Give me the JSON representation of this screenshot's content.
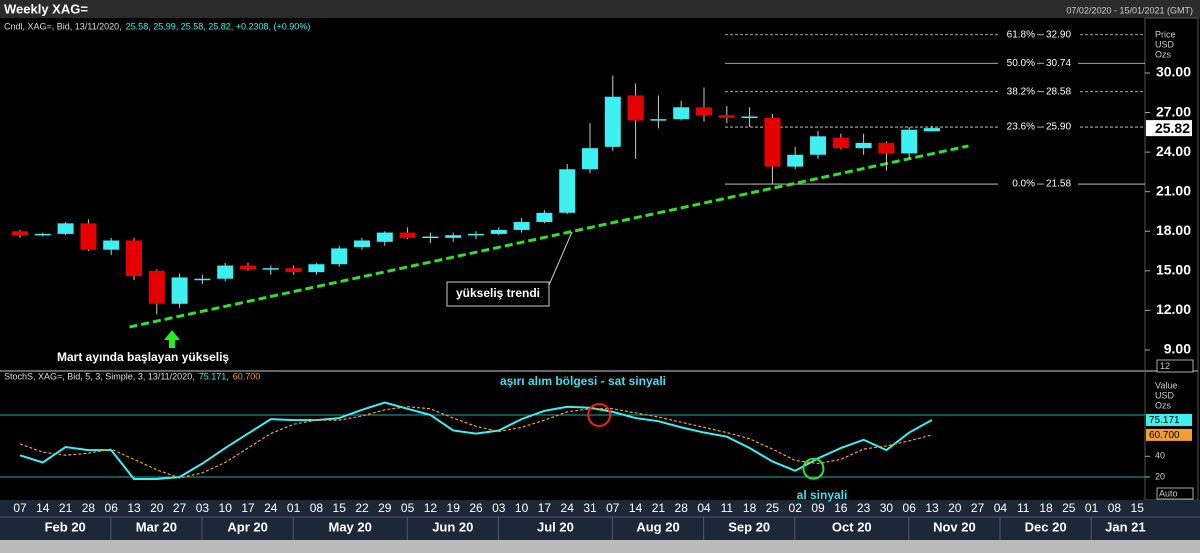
{
  "header": {
    "title": "Weekly XAG=",
    "range": "07/02/2020 - 15/01/2021 (GMT)"
  },
  "ui": {
    "zoom": "12",
    "scale": "Auto"
  },
  "chart_data": [
    {
      "type": "candlestick",
      "legend_label": "Cndl, XAG=, Bid, 13/11/2020,",
      "legend_values": "25.58, 25.99, 25.58, 25.82, +0.2308, (+0.90%)",
      "categories": [
        "07",
        "14",
        "21",
        "28",
        "06",
        "13",
        "20",
        "27",
        "03",
        "10",
        "17",
        "24",
        "01",
        "08",
        "15",
        "22",
        "29",
        "05",
        "12",
        "19",
        "26",
        "03",
        "10",
        "17",
        "24",
        "31",
        "07",
        "14",
        "21",
        "28",
        "04",
        "11",
        "18",
        "25",
        "02",
        "09",
        "16",
        "23",
        "30",
        "06",
        "13",
        "20",
        "27",
        "04",
        "11",
        "18",
        "25",
        "01",
        "08",
        "15"
      ],
      "months": [
        "Feb 20",
        "Mar 20",
        "Apr 20",
        "May 20",
        "Jun 20",
        "Jul 20",
        "Aug 20",
        "Sep 20",
        "Oct 20",
        "Nov 20",
        "Dec 20",
        "Jan 21"
      ],
      "open": [
        18.0,
        17.7,
        17.8,
        18.6,
        16.6,
        17.3,
        15.0,
        12.5,
        14.3,
        14.4,
        15.4,
        15.1,
        15.2,
        14.9,
        15.5,
        16.8,
        17.2,
        17.9,
        17.5,
        17.5,
        17.7,
        17.8,
        18.1,
        18.7,
        19.4,
        22.7,
        24.4,
        28.3,
        26.4,
        26.5,
        27.4,
        26.8,
        26.6,
        26.6,
        22.9,
        23.8,
        25.1,
        24.3,
        24.7,
        23.9,
        25.58,
        null,
        null,
        null,
        null,
        null,
        null,
        null,
        null,
        null
      ],
      "high": [
        18.1,
        17.9,
        18.7,
        18.9,
        17.5,
        17.5,
        15.1,
        14.8,
        14.7,
        15.6,
        15.6,
        15.4,
        15.4,
        15.6,
        16.9,
        17.5,
        18.0,
        18.3,
        17.9,
        17.9,
        18.0,
        18.3,
        19.0,
        19.6,
        23.1,
        26.2,
        29.8,
        29.2,
        28.3,
        27.9,
        28.9,
        27.5,
        27.4,
        26.9,
        24.4,
        25.6,
        25.4,
        25.4,
        24.8,
        25.9,
        25.99,
        null,
        null,
        null,
        null,
        null,
        null,
        null,
        null,
        null
      ],
      "low": [
        17.5,
        17.6,
        17.7,
        16.5,
        16.2,
        14.3,
        11.7,
        12.2,
        14.0,
        14.2,
        15.0,
        14.7,
        14.7,
        14.7,
        15.3,
        16.6,
        16.9,
        17.4,
        17.1,
        17.2,
        17.4,
        17.7,
        17.9,
        18.6,
        19.3,
        22.4,
        24.1,
        23.5,
        25.8,
        26.4,
        26.3,
        26.2,
        25.9,
        21.6,
        22.7,
        23.5,
        24.2,
        23.8,
        22.6,
        23.5,
        25.58,
        null,
        null,
        null,
        null,
        null,
        null,
        null,
        null,
        null
      ],
      "close": [
        17.7,
        17.8,
        18.6,
        16.6,
        17.3,
        14.6,
        12.5,
        14.5,
        14.4,
        15.4,
        15.1,
        15.2,
        14.9,
        15.5,
        16.7,
        17.3,
        17.9,
        17.5,
        17.6,
        17.7,
        17.8,
        18.1,
        18.7,
        19.4,
        22.7,
        24.3,
        28.2,
        26.4,
        26.5,
        27.4,
        26.8,
        26.6,
        26.7,
        22.9,
        23.8,
        25.2,
        24.3,
        24.7,
        23.9,
        25.7,
        25.82,
        null,
        null,
        null,
        null,
        null,
        null,
        null,
        null,
        null
      ],
      "up_color": "#3ff0f0",
      "down_color": "#e50000",
      "ylim": [
        7.48,
        34.17
      ],
      "yticks": [
        {
          "value": 9,
          "label": "9.00"
        },
        {
          "value": 12,
          "label": "12.00"
        },
        {
          "value": 15,
          "label": "15.00"
        },
        {
          "value": 18,
          "label": "18.00"
        },
        {
          "value": 21,
          "label": "21.00"
        },
        {
          "value": 24,
          "label": "24.00"
        },
        {
          "value": 27,
          "label": "27.00"
        },
        {
          "value": 30,
          "label": "30.00"
        }
      ],
      "axis_units": [
        "Price",
        "USD",
        "Ozs"
      ],
      "fib_levels": [
        {
          "name": "61.8%",
          "value": 32.9,
          "label": "32.90"
        },
        {
          "name": "50.0%",
          "value": 30.74,
          "label": "30.74"
        },
        {
          "name": "38.2%",
          "value": 28.58,
          "label": "28.58"
        },
        {
          "name": "23.6%",
          "value": 25.9,
          "label": "25.90"
        },
        {
          "name": "0.0%",
          "value": 21.58,
          "label": "21.58"
        }
      ],
      "trendline": {
        "x": [
          4.8,
          41.6
        ],
        "y": [
          10.74,
          24.47
        ],
        "color": "#33dd33"
      },
      "annotations": [
        "yükseliş trendi",
        "Mart ayında başlayan yükseliş"
      ]
    },
    {
      "type": "line",
      "legend_label": "StochS, XAG=, Bid,  5, 3, Simple, 3, 13/11/2020,",
      "legend_values": [
        "75.171,",
        "60.700"
      ],
      "series": [
        {
          "color": "#3ff0f0",
          "dashed": false,
          "values": [
            41,
            34,
            49,
            46,
            46,
            18,
            18,
            20,
            33,
            48,
            62,
            76,
            75,
            75,
            77,
            85,
            92,
            86,
            80,
            65,
            62,
            65,
            76,
            84,
            88,
            87,
            83,
            77,
            74,
            68,
            63,
            59,
            48,
            35,
            26,
            38,
            48,
            56,
            46,
            63,
            75.171,
            null,
            null,
            null,
            null,
            null,
            null,
            null,
            null,
            null
          ]
        },
        {
          "color": "#f0a030",
          "dashed": true,
          "values": [
            52,
            44,
            41,
            43,
            47,
            37,
            27,
            19,
            24,
            34,
            48,
            62,
            71,
            75,
            75,
            79,
            85,
            88,
            86,
            77,
            69,
            64,
            68,
            75,
            83,
            86,
            86,
            82,
            78,
            73,
            68,
            63,
            57,
            47,
            36,
            33,
            37,
            47,
            50,
            55,
            60.7,
            null,
            null,
            null,
            null,
            null,
            null,
            null,
            null,
            null
          ],
          "value_labels": [
            null,
            null,
            null,
            null,
            null,
            null,
            null,
            null,
            null,
            null,
            null,
            null,
            null,
            null,
            null,
            null,
            null,
            null,
            null,
            null,
            null,
            null,
            null,
            null,
            null,
            null,
            null,
            null,
            null,
            null,
            null,
            null,
            null,
            null,
            null,
            null,
            null,
            null,
            null,
            null,
            "60.700",
            null,
            null,
            null,
            null,
            null,
            null,
            null,
            null,
            null
          ]
        }
      ],
      "ylim": [
        -2.3,
        121.6
      ],
      "yticks": [
        20,
        40
      ],
      "levels": [
        20,
        80
      ],
      "axis_units": [
        "Value",
        "USD",
        "Ozs"
      ],
      "annotations": [
        "aşırı alım bölgesi - sat sinyali",
        "al sinyali"
      ]
    }
  ]
}
